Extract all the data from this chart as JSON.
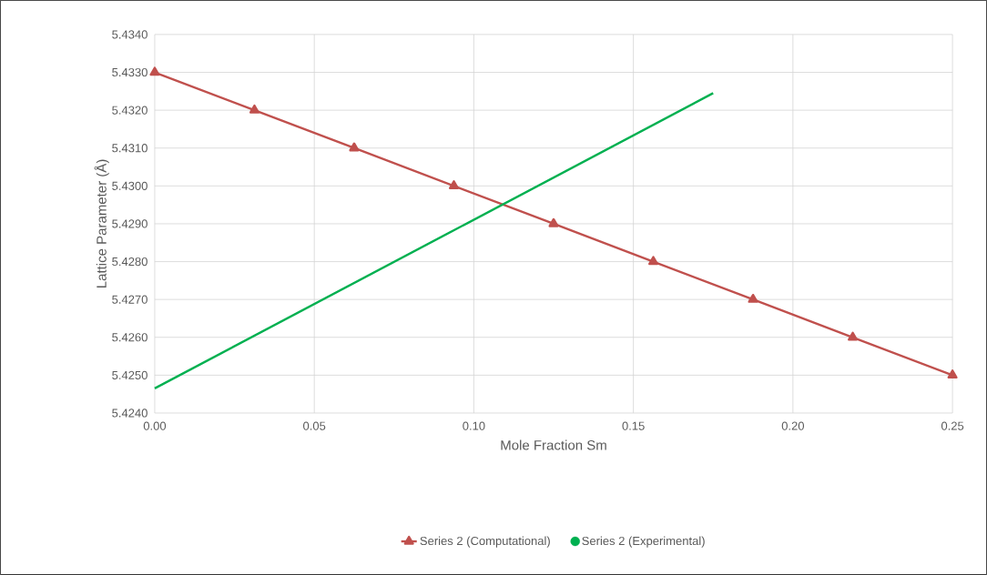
{
  "chart_data": {
    "type": "line",
    "xlabel": "Mole Fraction Sm",
    "ylabel": "Lattice Parameter (Å)",
    "xlim": [
      0,
      0.25
    ],
    "ylim": [
      5.424,
      5.434
    ],
    "xticks": [
      {
        "value": 0,
        "label": "0.00"
      },
      {
        "value": 0.05,
        "label": "0.05"
      },
      {
        "value": 0.1,
        "label": "0.10"
      },
      {
        "value": 0.15,
        "label": "0.15"
      },
      {
        "value": 0.2,
        "label": "0.20"
      },
      {
        "value": 0.25,
        "label": "0.25"
      }
    ],
    "yticks": [
      {
        "value": 5.424,
        "label": "5.4240"
      },
      {
        "value": 5.425,
        "label": "5.4250"
      },
      {
        "value": 5.426,
        "label": "5.4260"
      },
      {
        "value": 5.427,
        "label": "5.4270"
      },
      {
        "value": 5.428,
        "label": "5.4280"
      },
      {
        "value": 5.429,
        "label": "5.4290"
      },
      {
        "value": 5.43,
        "label": "5.4300"
      },
      {
        "value": 5.431,
        "label": "5.4310"
      },
      {
        "value": 5.432,
        "label": "5.4320"
      },
      {
        "value": 5.433,
        "label": "5.4330"
      },
      {
        "value": 5.434,
        "label": "5.4340"
      }
    ],
    "grid": true,
    "legend": "bottom",
    "series": [
      {
        "name": "Series 2 (Computational)",
        "marker": "triangle",
        "color": "#c0504d",
        "x": [
          0,
          0.03125,
          0.0625,
          0.09375,
          0.125,
          0.15625,
          0.1875,
          0.21875,
          0.25
        ],
        "values": [
          5.433,
          5.432,
          5.431,
          5.43,
          5.429,
          5.428,
          5.427,
          5.426,
          5.425
        ]
      },
      {
        "name": "Series 2 (Experimental)",
        "type": "scatter",
        "marker": "circle",
        "color": "#00b050"
      },
      {
        "type": "line",
        "marker": "none",
        "color": "#00b050",
        "x": [
          0,
          0.175
        ],
        "values": [
          5.42465,
          5.43245
        ]
      }
    ]
  }
}
